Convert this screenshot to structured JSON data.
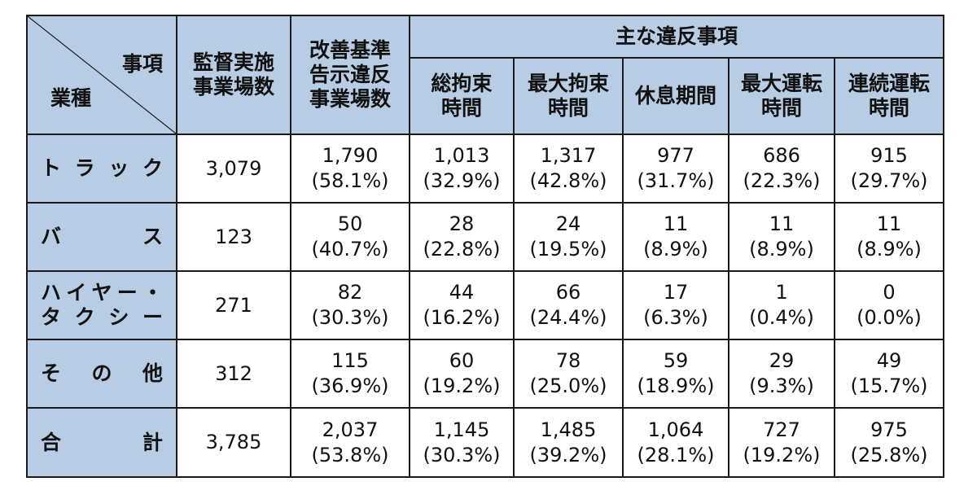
{
  "header": {
    "corner_top": "事項",
    "corner_bottom": "業種",
    "col_inspected": [
      "監督実施",
      "事業場数"
    ],
    "col_violation": [
      "改善基準",
      "告示違反",
      "事業場数"
    ],
    "group_label": "主な違反事項",
    "sub": [
      [
        "総拘束",
        "時間"
      ],
      [
        "最大拘束",
        "時間"
      ],
      [
        "休息期間"
      ],
      [
        "最大運転",
        "時間"
      ],
      [
        "連続運転",
        "時間"
      ]
    ]
  },
  "rows": [
    {
      "label": [
        "トラック"
      ],
      "label_chars": [
        [
          "ト",
          "ラ",
          "ッ",
          "ク"
        ]
      ],
      "inspected": "3,079",
      "violation": [
        "1,790",
        "(58.1%)"
      ],
      "cells": [
        [
          "1,013",
          "(32.9%)"
        ],
        [
          "1,317",
          "(42.8%)"
        ],
        [
          "977",
          "(31.7%)"
        ],
        [
          "686",
          "(22.3%)"
        ],
        [
          "915",
          "(29.7%)"
        ]
      ]
    },
    {
      "label": [
        "バス"
      ],
      "label_chars": [
        [
          "バ",
          "ス"
        ]
      ],
      "inspected": "123",
      "violation": [
        "50",
        "(40.7%)"
      ],
      "cells": [
        [
          "28",
          "(22.8%)"
        ],
        [
          "24",
          "(19.5%)"
        ],
        [
          "11",
          "(8.9%)"
        ],
        [
          "11",
          "(8.9%)"
        ],
        [
          "11",
          "(8.9%)"
        ]
      ]
    },
    {
      "label": [
        "ハイヤー・",
        "タクシー"
      ],
      "label_chars": [
        [
          "ハ",
          "イ",
          "ヤ",
          "ー",
          "・"
        ],
        [
          "タ",
          "ク",
          "シ",
          "ー"
        ]
      ],
      "inspected": "271",
      "violation": [
        "82",
        "(30.3%)"
      ],
      "cells": [
        [
          "44",
          "(16.2%)"
        ],
        [
          "66",
          "(24.4%)"
        ],
        [
          "17",
          "(6.3%)"
        ],
        [
          "1",
          "(0.4%)"
        ],
        [
          "0",
          "(0.0%)"
        ]
      ]
    },
    {
      "label": [
        "その他"
      ],
      "label_chars": [
        [
          "そ",
          "の",
          "他"
        ]
      ],
      "inspected": "312",
      "violation": [
        "115",
        "(36.9%)"
      ],
      "cells": [
        [
          "60",
          "(19.2%)"
        ],
        [
          "78",
          "(25.0%)"
        ],
        [
          "59",
          "(18.9%)"
        ],
        [
          "29",
          "(9.3%)"
        ],
        [
          "49",
          "(15.7%)"
        ]
      ]
    },
    {
      "label": [
        "合計"
      ],
      "label_chars": [
        [
          "合",
          "計"
        ]
      ],
      "inspected": "3,785",
      "violation": [
        "2,037",
        "(53.8%)"
      ],
      "cells": [
        [
          "1,145",
          "(30.3%)"
        ],
        [
          "1,485",
          "(39.2%)"
        ],
        [
          "1,064",
          "(28.1%)"
        ],
        [
          "727",
          "(19.2%)"
        ],
        [
          "975",
          "(25.8%)"
        ]
      ]
    }
  ],
  "colors": {
    "header_bg": "#b8cce4",
    "border": "#1a1a1a",
    "cell_bg": "#ffffff"
  }
}
